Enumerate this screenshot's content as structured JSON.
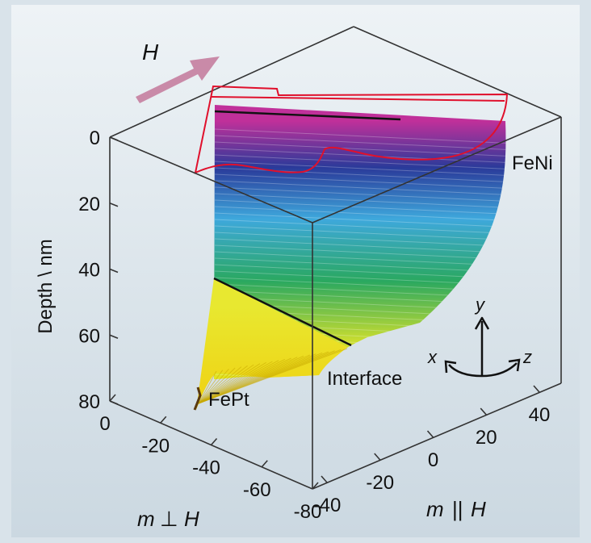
{
  "chart_data": {
    "type": "3d-surface",
    "title": "",
    "depth_axis": {
      "label": "Depth \\ nm",
      "ticks": [
        "0",
        "20",
        "40",
        "60",
        "80"
      ],
      "range": [
        0,
        80
      ]
    },
    "perp_axis": {
      "label_m": "m",
      "label_sym": "⊥",
      "label_h": "H",
      "ticks": [
        "0",
        "-20",
        "-40",
        "-60",
        "-80"
      ],
      "range": [
        0,
        -80
      ]
    },
    "par_axis": {
      "label_m": "m",
      "label_sym": "||",
      "label_h": "H",
      "ticks": [
        "-40",
        "-20",
        "0",
        "20",
        "40"
      ],
      "range": [
        -40,
        40
      ]
    },
    "field_label": "H",
    "layers": [
      {
        "name": "FeNi",
        "depth_range": [
          0,
          60
        ]
      },
      {
        "name": "FePt",
        "depth_range": [
          60,
          80
        ]
      }
    ],
    "annotations": {
      "interface": "Interface",
      "fenI": "FeNi",
      "fept": "FePt"
    },
    "triad": {
      "x": "x",
      "y": "y",
      "z": "z"
    },
    "colorscale": [
      "#c0309a",
      "#2a3a9a",
      "#3ea8dc",
      "#2aa860",
      "#e4e420"
    ],
    "colors": {
      "outline": "#e0102c",
      "arrow": "#c98aa8",
      "box": "#333333"
    }
  }
}
